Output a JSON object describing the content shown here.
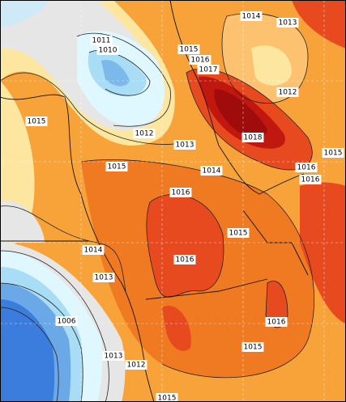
{
  "map": {
    "isobar_labels": [
      "1014",
      "1013",
      "1011",
      "1010",
      "1015",
      "1016",
      "1017",
      "1012",
      "1015",
      "1012",
      "1013",
      "1018",
      "1015",
      "1015",
      "1014",
      "1016",
      "1016",
      "1016",
      "1015",
      "1014",
      "1016",
      "1013",
      "1006",
      "1016",
      "1015",
      "1013",
      "1012",
      "1015"
    ]
  }
}
